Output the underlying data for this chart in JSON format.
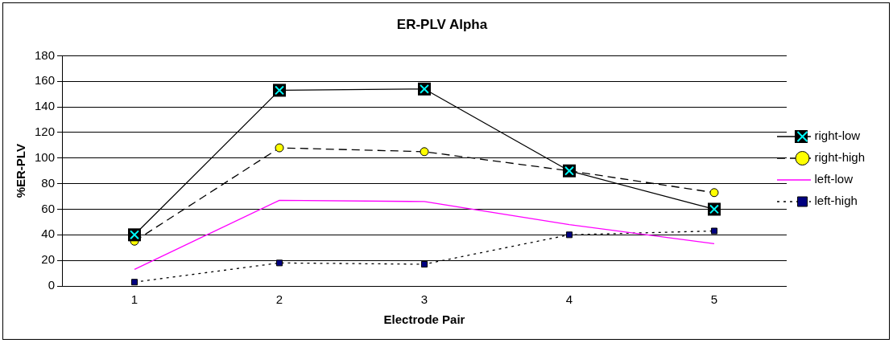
{
  "chart_data": {
    "type": "line",
    "title": "ER-PLV Alpha",
    "xlabel": "Electrode Pair",
    "ylabel": "%ER-PLV",
    "categories": [
      "1",
      "2",
      "3",
      "4",
      "5"
    ],
    "series": [
      {
        "name": "right-low",
        "color": "#000000",
        "colors": [
          "#00ffff",
          "#00ffff",
          "#00ffff",
          "#00ffff",
          "#00ffff"
        ],
        "marker": "cross",
        "line_style": "solid",
        "values": [
          40,
          153,
          154,
          90,
          60
        ]
      },
      {
        "name": "right-high",
        "color": "#000000",
        "colors": [
          "#ffff00",
          "#ffff00",
          "#ffff00",
          "#ffff00",
          "#ffff00"
        ],
        "marker": "circle",
        "line_style": "dashed",
        "values": [
          35,
          108,
          105,
          90,
          73
        ]
      },
      {
        "name": "left-low",
        "color": "#ff00ff",
        "marker": "none",
        "line_style": "solid",
        "values": [
          13,
          67,
          66,
          48,
          33
        ]
      },
      {
        "name": "left-high",
        "color": "#000000",
        "colors": [
          "#000080",
          "#000080",
          "#000080",
          "#000080",
          "#000080"
        ],
        "marker": "square",
        "line_style": "dotted",
        "values": [
          3,
          18,
          17,
          40,
          43
        ]
      }
    ],
    "ylim": [
      0,
      180
    ],
    "yticks": [
      0,
      20,
      40,
      60,
      80,
      100,
      120,
      140,
      160,
      180
    ],
    "grid": "y",
    "legend": "right"
  }
}
